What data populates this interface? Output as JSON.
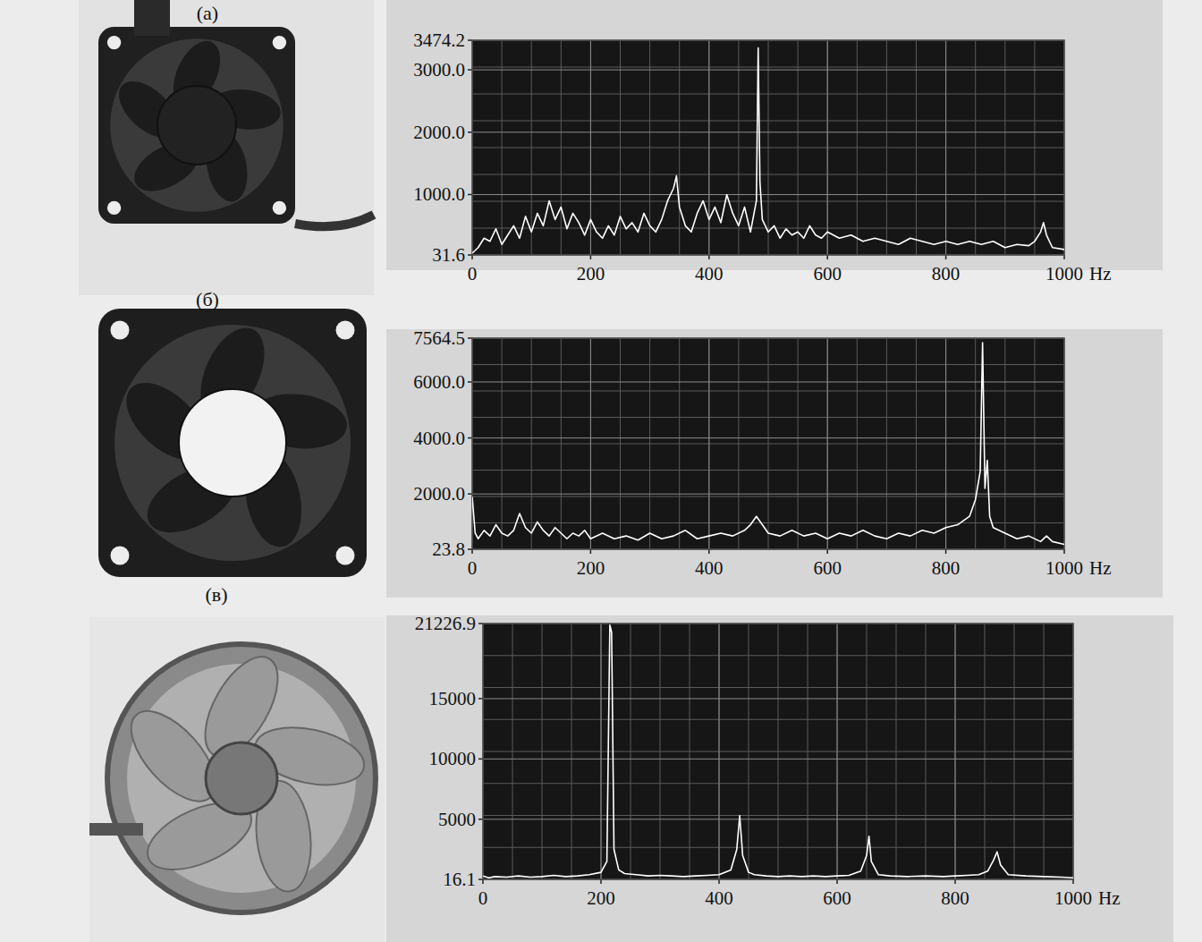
{
  "chart_data": [
    {
      "type": "line",
      "title": "(а)",
      "x_label": "Hz",
      "color": "#ffffff",
      "grid": true,
      "xlim": [
        0,
        1000
      ],
      "xticks": [
        0,
        200,
        400,
        600,
        800,
        1000
      ],
      "ylim": [
        31.6,
        3474.2
      ],
      "yticks": [
        {
          "value": 31.6,
          "label": "31.6"
        },
        {
          "value": 1000,
          "label": "1000.0"
        },
        {
          "value": 2000,
          "label": "2000.0"
        },
        {
          "value": 3000,
          "label": "3000.0"
        },
        {
          "value": 3474.2,
          "label": "3474.2"
        }
      ],
      "x": [
        0,
        10,
        20,
        30,
        40,
        50,
        60,
        70,
        80,
        90,
        100,
        110,
        120,
        130,
        140,
        150,
        160,
        170,
        180,
        190,
        200,
        210,
        220,
        230,
        240,
        250,
        260,
        270,
        280,
        290,
        300,
        310,
        320,
        330,
        340,
        345,
        350,
        360,
        370,
        380,
        390,
        400,
        410,
        420,
        430,
        440,
        450,
        460,
        470,
        480,
        483,
        486,
        490,
        500,
        510,
        520,
        530,
        540,
        550,
        560,
        570,
        580,
        590,
        600,
        620,
        640,
        660,
        680,
        700,
        720,
        740,
        760,
        780,
        800,
        820,
        840,
        860,
        880,
        900,
        920,
        940,
        950,
        960,
        965,
        970,
        980,
        1000
      ],
      "values": [
        60,
        150,
        300,
        250,
        450,
        200,
        350,
        500,
        300,
        650,
        400,
        700,
        500,
        900,
        600,
        800,
        450,
        700,
        550,
        350,
        600,
        400,
        300,
        500,
        350,
        650,
        450,
        550,
        400,
        700,
        500,
        400,
        600,
        900,
        1100,
        1300,
        800,
        500,
        400,
        700,
        900,
        600,
        800,
        550,
        1000,
        700,
        500,
        800,
        400,
        900,
        3350,
        1200,
        600,
        400,
        500,
        300,
        450,
        350,
        400,
        300,
        500,
        350,
        300,
        400,
        300,
        350,
        250,
        300,
        250,
        200,
        300,
        250,
        200,
        250,
        200,
        250,
        200,
        250,
        150,
        200,
        180,
        250,
        400,
        550,
        350,
        150,
        120
      ]
    },
    {
      "type": "line",
      "title": "(б)",
      "x_label": "Hz",
      "color": "#ffffff",
      "grid": true,
      "xlim": [
        0,
        1000
      ],
      "xticks": [
        0,
        200,
        400,
        600,
        800,
        1000
      ],
      "ylim": [
        23.8,
        7564.5
      ],
      "yticks": [
        {
          "value": 23.8,
          "label": "23.8"
        },
        {
          "value": 2000,
          "label": "2000.0"
        },
        {
          "value": 4000,
          "label": "4000.0"
        },
        {
          "value": 6000,
          "label": "6000.0"
        },
        {
          "value": 7564.5,
          "label": "7564.5"
        }
      ],
      "x": [
        0,
        5,
        10,
        20,
        30,
        40,
        50,
        60,
        70,
        80,
        90,
        100,
        110,
        120,
        130,
        140,
        150,
        160,
        170,
        180,
        190,
        200,
        220,
        240,
        260,
        280,
        300,
        320,
        340,
        360,
        380,
        400,
        420,
        440,
        460,
        470,
        480,
        490,
        500,
        520,
        540,
        560,
        580,
        600,
        620,
        640,
        660,
        680,
        700,
        720,
        740,
        760,
        780,
        800,
        820,
        840,
        850,
        858,
        862,
        866,
        870,
        874,
        880,
        900,
        920,
        940,
        960,
        970,
        980,
        1000
      ],
      "values": [
        1900,
        600,
        400,
        700,
        500,
        900,
        600,
        500,
        700,
        1300,
        800,
        600,
        1000,
        700,
        500,
        800,
        600,
        400,
        600,
        500,
        700,
        400,
        600,
        400,
        500,
        350,
        600,
        400,
        500,
        700,
        400,
        500,
        600,
        500,
        700,
        900,
        1200,
        900,
        600,
        500,
        700,
        500,
        600,
        400,
        600,
        500,
        700,
        500,
        400,
        600,
        500,
        700,
        600,
        800,
        900,
        1200,
        1800,
        2800,
        7400,
        2200,
        3200,
        1200,
        800,
        600,
        400,
        500,
        300,
        500,
        300,
        200
      ]
    },
    {
      "type": "line",
      "title": "(в)",
      "x_label": "Hz",
      "color": "#ffffff",
      "grid": true,
      "xlim": [
        0,
        1000
      ],
      "xticks": [
        0,
        200,
        400,
        600,
        800,
        1000
      ],
      "ylim": [
        16.1,
        21226.9
      ],
      "yticks": [
        16.1,
        5000,
        10000,
        15000,
        21226.9
      ],
      "x": [
        0,
        10,
        20,
        40,
        60,
        80,
        100,
        120,
        140,
        160,
        180,
        200,
        210,
        215,
        218,
        222,
        230,
        240,
        260,
        280,
        300,
        320,
        340,
        360,
        380,
        400,
        420,
        430,
        435,
        440,
        450,
        460,
        480,
        500,
        520,
        540,
        560,
        580,
        600,
        620,
        640,
        650,
        654,
        658,
        670,
        690,
        720,
        750,
        780,
        800,
        820,
        840,
        855,
        865,
        871,
        877,
        890,
        920,
        950,
        980,
        1000
      ],
      "values": [
        300,
        150,
        250,
        200,
        300,
        200,
        250,
        350,
        250,
        300,
        400,
        600,
        1500,
        21100,
        20500,
        2500,
        800,
        500,
        400,
        300,
        350,
        300,
        250,
        300,
        350,
        400,
        800,
        2500,
        5300,
        2000,
        600,
        400,
        300,
        250,
        300,
        250,
        300,
        250,
        300,
        350,
        700,
        2000,
        3600,
        1500,
        400,
        300,
        250,
        300,
        250,
        300,
        350,
        400,
        700,
        1600,
        2300,
        1200,
        400,
        300,
        250,
        200,
        150
      ]
    }
  ]
}
